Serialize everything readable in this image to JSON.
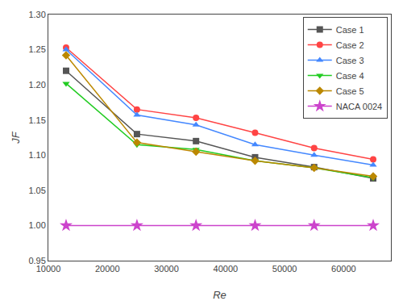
{
  "chart_data": {
    "type": "line",
    "x": [
      13000,
      25000,
      35000,
      45000,
      55000,
      65000
    ],
    "series": [
      {
        "name": "Case 1",
        "color": "#555555",
        "marker": "square",
        "values": [
          1.22,
          1.13,
          1.12,
          1.097,
          1.083,
          1.067
        ]
      },
      {
        "name": "Case 2",
        "color": "#FF4444",
        "marker": "circle",
        "values": [
          1.253,
          1.165,
          1.153,
          1.132,
          1.11,
          1.094
        ]
      },
      {
        "name": "Case 3",
        "color": "#4488FF",
        "marker": "triangle-up",
        "values": [
          1.25,
          1.157,
          1.143,
          1.115,
          1.1,
          1.086
        ]
      },
      {
        "name": "Case 4",
        "color": "#22CC22",
        "marker": "triangle-down",
        "values": [
          1.202,
          1.115,
          1.108,
          1.092,
          1.082,
          1.068
        ]
      },
      {
        "name": "Case 5",
        "color": "#BB8800",
        "marker": "diamond",
        "values": [
          1.242,
          1.118,
          1.105,
          1.092,
          1.082,
          1.07
        ]
      },
      {
        "name": "NACA 0024",
        "color": "#CC44CC",
        "marker": "star",
        "values": [
          1.0,
          1.0,
          1.0,
          1.0,
          1.0,
          1.0
        ]
      }
    ],
    "xlabel": "Re",
    "ylabel": "JF",
    "xlim": [
      10000,
      68000
    ],
    "ylim": [
      0.95,
      1.3
    ],
    "xticks": [
      10000,
      20000,
      30000,
      40000,
      50000,
      60000
    ],
    "yticks": [
      0.95,
      {
        "value": 1.0,
        "label": "1.00"
      },
      1.05,
      {
        "value": 1.1,
        "label": "1.10"
      },
      1.15,
      {
        "value": 1.2,
        "label": "1.20"
      },
      1.25,
      {
        "value": 1.3,
        "label": "1.30"
      }
    ],
    "grid": false,
    "legend": "upper right"
  }
}
